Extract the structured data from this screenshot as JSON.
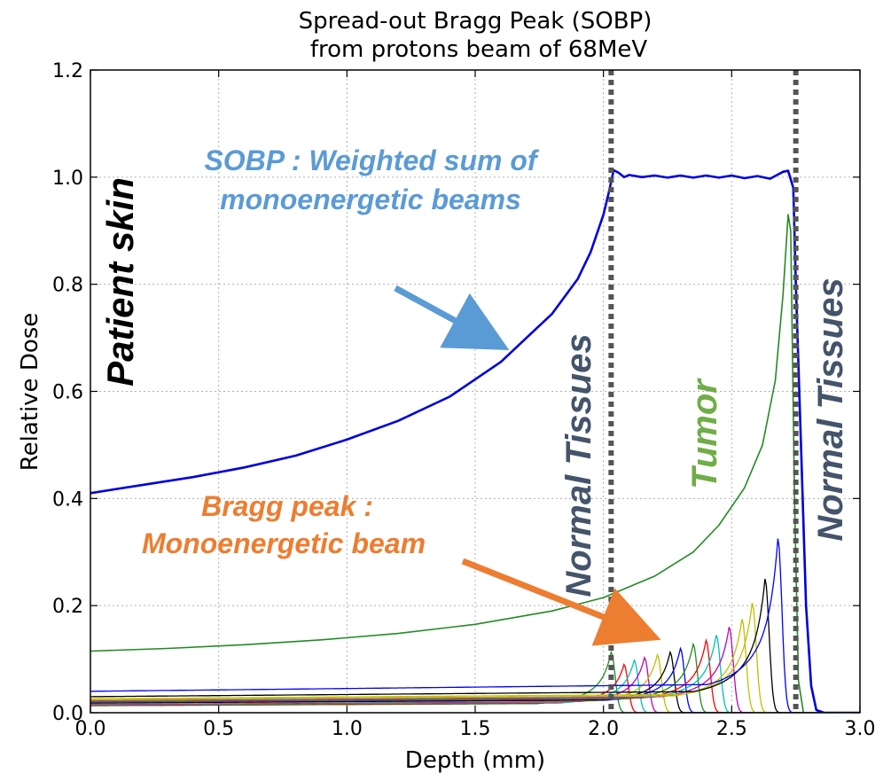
{
  "chart_data": {
    "type": "line",
    "title": [
      "Spread-out Bragg Peak (SOBP)",
      "from protons beam of 68MeV"
    ],
    "xlabel": "Depth (mm)",
    "ylabel": "Relative Dose",
    "xlim": [
      0.0,
      3.0
    ],
    "ylim": [
      0.0,
      1.2
    ],
    "xticks": [
      "0.0",
      "0.5",
      "1.0",
      "1.5",
      "2.0",
      "2.5",
      "3.0"
    ],
    "yticks": [
      "0.0",
      "0.2",
      "0.4",
      "0.6",
      "0.8",
      "1.0",
      "1.2"
    ],
    "grid": true,
    "series": [
      {
        "role": "sobp",
        "color": "#0000dd",
        "points": [
          [
            0.0,
            0.41
          ],
          [
            0.2,
            0.425
          ],
          [
            0.4,
            0.44
          ],
          [
            0.6,
            0.458
          ],
          [
            0.8,
            0.48
          ],
          [
            1.0,
            0.51
          ],
          [
            1.2,
            0.545
          ],
          [
            1.4,
            0.59
          ],
          [
            1.6,
            0.655
          ],
          [
            1.8,
            0.745
          ],
          [
            1.9,
            0.81
          ],
          [
            1.95,
            0.86
          ],
          [
            2.0,
            0.93
          ],
          [
            2.02,
            0.97
          ],
          [
            2.04,
            1.013
          ],
          [
            2.06,
            1.008
          ],
          [
            2.08,
            1.0
          ],
          [
            2.1,
            1.004
          ],
          [
            2.15,
            1.0
          ],
          [
            2.2,
            1.003
          ],
          [
            2.25,
            0.999
          ],
          [
            2.3,
            1.003
          ],
          [
            2.35,
            0.999
          ],
          [
            2.4,
            1.003
          ],
          [
            2.45,
            0.999
          ],
          [
            2.5,
            1.003
          ],
          [
            2.55,
            0.998
          ],
          [
            2.6,
            1.002
          ],
          [
            2.65,
            0.997
          ],
          [
            2.7,
            1.01
          ],
          [
            2.72,
            1.012
          ],
          [
            2.74,
            0.98
          ],
          [
            2.75,
            0.8
          ],
          [
            2.77,
            0.5
          ],
          [
            2.79,
            0.2
          ],
          [
            2.81,
            0.05
          ],
          [
            2.83,
            0.005
          ],
          [
            2.86,
            0.0
          ],
          [
            3.0,
            0.0
          ]
        ]
      },
      {
        "role": "bragg-peak",
        "color": "#228b22",
        "points": [
          [
            0.0,
            0.115
          ],
          [
            0.3,
            0.12
          ],
          [
            0.6,
            0.127
          ],
          [
            0.9,
            0.136
          ],
          [
            1.2,
            0.148
          ],
          [
            1.5,
            0.165
          ],
          [
            1.8,
            0.19
          ],
          [
            2.0,
            0.215
          ],
          [
            2.2,
            0.255
          ],
          [
            2.35,
            0.3
          ],
          [
            2.45,
            0.35
          ],
          [
            2.55,
            0.42
          ],
          [
            2.62,
            0.5
          ],
          [
            2.67,
            0.62
          ],
          [
            2.7,
            0.78
          ],
          [
            2.72,
            0.93
          ],
          [
            2.73,
            0.9
          ],
          [
            2.745,
            0.4
          ],
          [
            2.76,
            0.06
          ],
          [
            2.78,
            0.0
          ],
          [
            3.0,
            0.0
          ]
        ]
      }
    ],
    "mono_peaks": [
      {
        "peak_x": 2.03,
        "peak_y": 0.113,
        "base_y": 0.013,
        "color": "#228b22"
      },
      {
        "peak_x": 2.08,
        "peak_y": 0.09,
        "base_y": 0.014,
        "color": "#ff0000"
      },
      {
        "peak_x": 2.12,
        "peak_y": 0.098,
        "base_y": 0.015,
        "color": "#00bfbf"
      },
      {
        "peak_x": 2.16,
        "peak_y": 0.103,
        "base_y": 0.016,
        "color": "#bf00bf"
      },
      {
        "peak_x": 2.21,
        "peak_y": 0.108,
        "base_y": 0.017,
        "color": "#bfbf00"
      },
      {
        "peak_x": 2.26,
        "peak_y": 0.113,
        "base_y": 0.018,
        "color": "#000000"
      },
      {
        "peak_x": 2.3,
        "peak_y": 0.12,
        "base_y": 0.019,
        "color": "#0000ff"
      },
      {
        "peak_x": 2.35,
        "peak_y": 0.128,
        "base_y": 0.02,
        "color": "#228b22"
      },
      {
        "peak_x": 2.4,
        "peak_y": 0.135,
        "base_y": 0.021,
        "color": "#ff0000"
      },
      {
        "peak_x": 2.44,
        "peak_y": 0.145,
        "base_y": 0.022,
        "color": "#00bfbf"
      },
      {
        "peak_x": 2.49,
        "peak_y": 0.16,
        "base_y": 0.023,
        "color": "#bf00bf"
      },
      {
        "peak_x": 2.54,
        "peak_y": 0.175,
        "base_y": 0.024,
        "color": "#bfbf00"
      },
      {
        "peak_x": 2.58,
        "peak_y": 0.205,
        "base_y": 0.026,
        "color": "#bfbf00"
      },
      {
        "peak_x": 2.63,
        "peak_y": 0.25,
        "base_y": 0.03,
        "color": "#000000"
      },
      {
        "peak_x": 2.68,
        "peak_y": 0.325,
        "base_y": 0.04,
        "color": "#0000ff"
      }
    ],
    "boundaries": [
      2.03,
      2.75
    ],
    "annotations": {
      "patient_skin": "Patient skin",
      "normal_tissues_left": "Normal Tissues",
      "normal_tissues_right": "Normal Tissues",
      "tumor": "Tumor",
      "sobp_line1": "SOBP : Weighted sum of",
      "sobp_line2": "monoenergetic beams",
      "bragg_line1": "Bragg peak :",
      "bragg_line2": "Monoenergetic beam"
    },
    "colors": {
      "sobp_text": "#5b9bd5",
      "bragg_text": "#ed7d31",
      "tumor_text": "#70ad47",
      "tissue_text": "#44546a",
      "boundary": "#555555"
    }
  }
}
